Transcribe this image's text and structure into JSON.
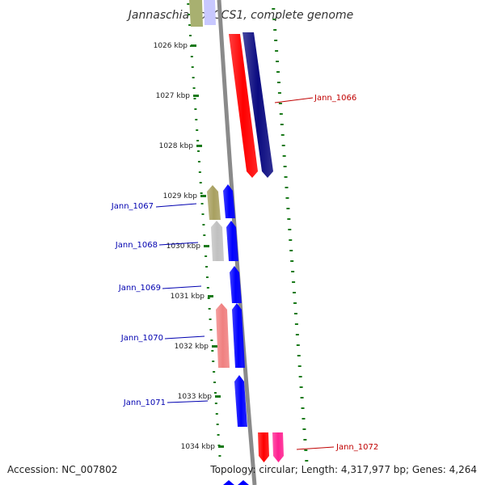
{
  "title": "Jannaschia sp. CCS1, complete genome",
  "accession": "Accession: NC_007802",
  "topology": "Topology: circular; Length: 4,317,977 bp; Genes: 4,264",
  "colors": {
    "backbone": "#8a8a8a",
    "tick": "#1a7a1a",
    "forward_label": "#0000b0",
    "reverse_label": "#c00000"
  },
  "scale": {
    "unit": "kbp",
    "ticks": [
      "1026 kbp",
      "1027 kbp",
      "1028 kbp",
      "1029 kbp",
      "1030 kbp",
      "1031 kbp",
      "1032 kbp",
      "1033 kbp",
      "1034 kbp"
    ]
  },
  "genes": [
    {
      "name": "Jann_1066",
      "strand": "reverse",
      "color": "#ff0000",
      "lane": "inner"
    },
    {
      "name": "",
      "strand": "reverse",
      "color": "#0a0a80",
      "lane": "inner"
    },
    {
      "name": "Jann_1067",
      "strand": "forward",
      "color": "#a8a060",
      "lane": "outer"
    },
    {
      "name": "",
      "strand": "forward",
      "color": "#0000ff",
      "lane": "inner"
    },
    {
      "name": "Jann_1068",
      "strand": "forward",
      "color": "#c0c0c0",
      "lane": "outer"
    },
    {
      "name": "",
      "strand": "forward",
      "color": "#0000ff",
      "lane": "inner"
    },
    {
      "name": "Jann_1069",
      "strand": "forward",
      "color": "#0000ff",
      "lane": "inner"
    },
    {
      "name": "Jann_1070",
      "strand": "forward",
      "color": "#f08080",
      "lane": "outer"
    },
    {
      "name": "",
      "strand": "forward",
      "color": "#0000ff",
      "lane": "inner"
    },
    {
      "name": "Jann_1071",
      "strand": "forward",
      "color": "#0000ff",
      "lane": "inner"
    },
    {
      "name": "Jann_1072",
      "strand": "reverse",
      "color": "#ff0000",
      "lane": "inner"
    },
    {
      "name": "",
      "strand": "reverse",
      "color": "#ff2090",
      "lane": "inner"
    }
  ]
}
